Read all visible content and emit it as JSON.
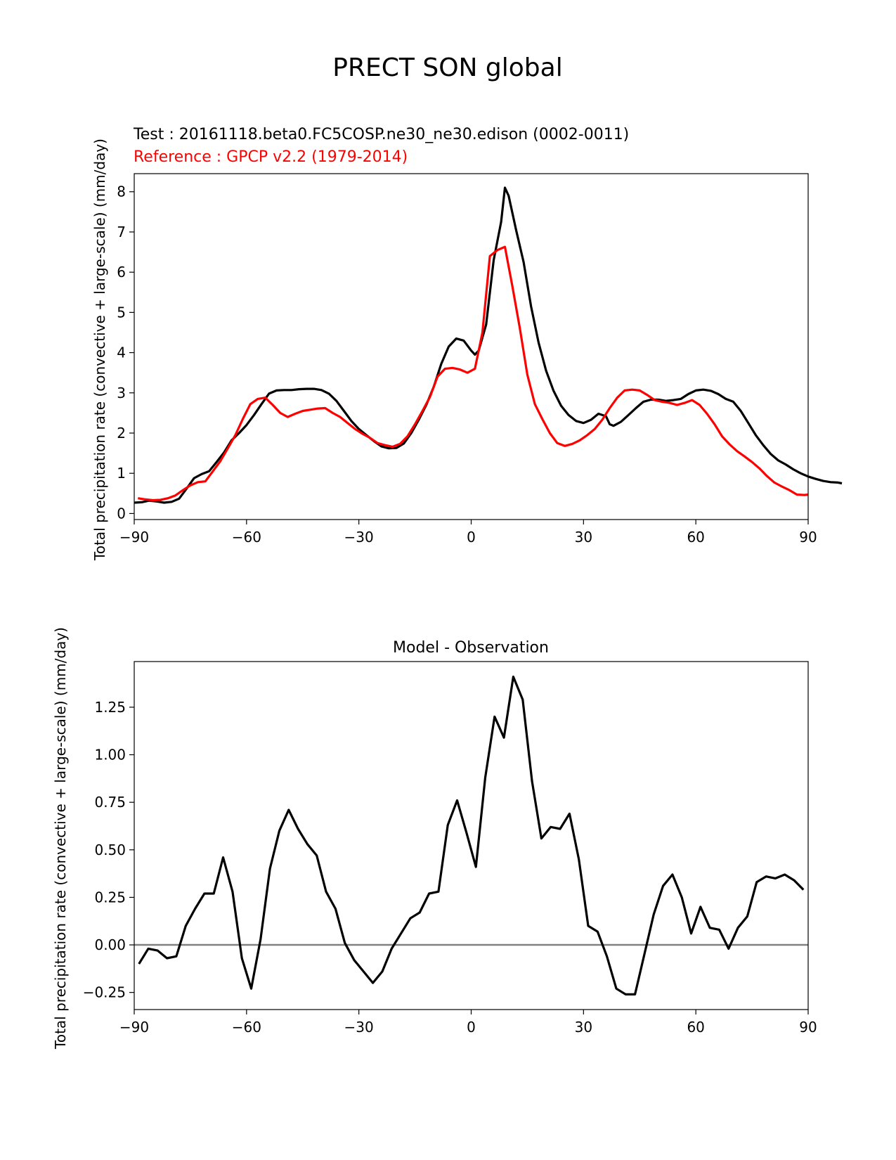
{
  "page_title": "PRECT SON global",
  "chart_data": [
    {
      "type": "line",
      "test_label": "Test : 20161118.beta0.FC5COSP.ne30_ne30.edison (0002-0011)",
      "reference_label": "Reference : GPCP v2.2 (1979-2014)",
      "xlabel": "",
      "ylabel": "Total precipitation rate (convective + large-scale) (mm/day)",
      "xlim": [
        -90,
        90
      ],
      "ylim": [
        -0.15,
        8.45
      ],
      "xticks": [
        -90,
        -60,
        -30,
        0,
        30,
        60,
        90
      ],
      "xtick_labels": [
        "−90",
        "−60",
        "−30",
        "0",
        "30",
        "60",
        "90"
      ],
      "yticks": [
        0,
        1,
        2,
        3,
        4,
        5,
        6,
        7,
        8
      ],
      "ytick_labels": [
        "0",
        "1",
        "2",
        "3",
        "4",
        "5",
        "6",
        "7",
        "8"
      ],
      "series": [
        {
          "color": "#000000",
          "points": [
            [
              -90,
              0.27
            ],
            [
              -88,
              0.28
            ],
            [
              -86,
              0.32
            ],
            [
              -84,
              0.3
            ],
            [
              -82,
              0.27
            ],
            [
              -80,
              0.29
            ],
            [
              -78,
              0.37
            ],
            [
              -76,
              0.62
            ],
            [
              -74,
              0.88
            ],
            [
              -72,
              0.98
            ],
            [
              -70,
              1.05
            ],
            [
              -68,
              1.28
            ],
            [
              -66,
              1.52
            ],
            [
              -64,
              1.82
            ],
            [
              -62,
              2.0
            ],
            [
              -60,
              2.2
            ],
            [
              -58,
              2.45
            ],
            [
              -56,
              2.72
            ],
            [
              -54,
              2.98
            ],
            [
              -52,
              3.06
            ],
            [
              -50,
              3.07
            ],
            [
              -48,
              3.07
            ],
            [
              -46,
              3.09
            ],
            [
              -44,
              3.1
            ],
            [
              -42,
              3.1
            ],
            [
              -40,
              3.07
            ],
            [
              -38,
              2.98
            ],
            [
              -36,
              2.8
            ],
            [
              -34,
              2.55
            ],
            [
              -32,
              2.3
            ],
            [
              -30,
              2.1
            ],
            [
              -28,
              1.95
            ],
            [
              -26,
              1.8
            ],
            [
              -24,
              1.67
            ],
            [
              -22,
              1.62
            ],
            [
              -20,
              1.63
            ],
            [
              -18,
              1.74
            ],
            [
              -16,
              2.0
            ],
            [
              -14,
              2.33
            ],
            [
              -12,
              2.7
            ],
            [
              -10,
              3.15
            ],
            [
              -8,
              3.72
            ],
            [
              -6,
              4.15
            ],
            [
              -4,
              4.35
            ],
            [
              -2,
              4.3
            ],
            [
              0,
              4.05
            ],
            [
              1,
              3.95
            ],
            [
              2,
              4.05
            ],
            [
              4,
              4.7
            ],
            [
              6,
              6.3
            ],
            [
              8,
              7.25
            ],
            [
              9,
              8.1
            ],
            [
              10,
              7.9
            ],
            [
              12,
              7.05
            ],
            [
              14,
              6.25
            ],
            [
              16,
              5.15
            ],
            [
              18,
              4.25
            ],
            [
              20,
              3.55
            ],
            [
              22,
              3.05
            ],
            [
              24,
              2.68
            ],
            [
              26,
              2.45
            ],
            [
              28,
              2.3
            ],
            [
              30,
              2.25
            ],
            [
              32,
              2.33
            ],
            [
              34,
              2.48
            ],
            [
              36,
              2.42
            ],
            [
              37,
              2.22
            ],
            [
              38,
              2.18
            ],
            [
              40,
              2.28
            ],
            [
              42,
              2.45
            ],
            [
              44,
              2.62
            ],
            [
              46,
              2.78
            ],
            [
              48,
              2.83
            ],
            [
              50,
              2.83
            ],
            [
              52,
              2.8
            ],
            [
              54,
              2.82
            ],
            [
              56,
              2.85
            ],
            [
              58,
              2.97
            ],
            [
              60,
              3.06
            ],
            [
              62,
              3.08
            ],
            [
              64,
              3.05
            ],
            [
              66,
              2.97
            ],
            [
              68,
              2.85
            ],
            [
              70,
              2.78
            ],
            [
              72,
              2.55
            ],
            [
              74,
              2.25
            ],
            [
              76,
              1.95
            ],
            [
              78,
              1.7
            ],
            [
              80,
              1.48
            ],
            [
              82,
              1.32
            ],
            [
              84,
              1.22
            ],
            [
              86,
              1.1
            ],
            [
              88,
              1.0
            ],
            [
              90,
              0.92
            ],
            [
              92,
              0.86
            ],
            [
              94,
              0.81
            ],
            [
              96,
              0.78
            ],
            [
              98,
              0.77
            ],
            [
              99,
              0.75
            ]
          ]
        },
        {
          "color": "#ff0000",
          "points": [
            [
              -89,
              0.38
            ],
            [
              -87,
              0.35
            ],
            [
              -85,
              0.33
            ],
            [
              -83,
              0.34
            ],
            [
              -81,
              0.38
            ],
            [
              -79,
              0.45
            ],
            [
              -77,
              0.58
            ],
            [
              -75,
              0.7
            ],
            [
              -73,
              0.78
            ],
            [
              -71,
              0.8
            ],
            [
              -69,
              1.05
            ],
            [
              -67,
              1.3
            ],
            [
              -65,
              1.62
            ],
            [
              -63,
              1.95
            ],
            [
              -61,
              2.35
            ],
            [
              -59,
              2.72
            ],
            [
              -57,
              2.85
            ],
            [
              -55,
              2.88
            ],
            [
              -53,
              2.7
            ],
            [
              -51,
              2.5
            ],
            [
              -49,
              2.4
            ],
            [
              -47,
              2.48
            ],
            [
              -45,
              2.55
            ],
            [
              -43,
              2.58
            ],
            [
              -41,
              2.61
            ],
            [
              -39,
              2.62
            ],
            [
              -37,
              2.5
            ],
            [
              -35,
              2.4
            ],
            [
              -33,
              2.25
            ],
            [
              -31,
              2.1
            ],
            [
              -29,
              1.98
            ],
            [
              -27,
              1.88
            ],
            [
              -25,
              1.75
            ],
            [
              -23,
              1.7
            ],
            [
              -21,
              1.66
            ],
            [
              -19,
              1.73
            ],
            [
              -17,
              1.92
            ],
            [
              -15,
              2.22
            ],
            [
              -13,
              2.55
            ],
            [
              -11,
              2.9
            ],
            [
              -9,
              3.4
            ],
            [
              -7,
              3.6
            ],
            [
              -5,
              3.62
            ],
            [
              -3,
              3.58
            ],
            [
              -1,
              3.5
            ],
            [
              1,
              3.6
            ],
            [
              3,
              4.5
            ],
            [
              5,
              6.4
            ],
            [
              7,
              6.55
            ],
            [
              9,
              6.63
            ],
            [
              11,
              5.65
            ],
            [
              13,
              4.6
            ],
            [
              15,
              3.45
            ],
            [
              17,
              2.72
            ],
            [
              19,
              2.35
            ],
            [
              21,
              2.0
            ],
            [
              23,
              1.75
            ],
            [
              25,
              1.68
            ],
            [
              27,
              1.73
            ],
            [
              29,
              1.82
            ],
            [
              31,
              1.95
            ],
            [
              33,
              2.1
            ],
            [
              35,
              2.33
            ],
            [
              37,
              2.62
            ],
            [
              39,
              2.88
            ],
            [
              41,
              3.06
            ],
            [
              43,
              3.08
            ],
            [
              45,
              3.06
            ],
            [
              47,
              2.95
            ],
            [
              49,
              2.82
            ],
            [
              51,
              2.78
            ],
            [
              53,
              2.75
            ],
            [
              55,
              2.7
            ],
            [
              57,
              2.75
            ],
            [
              59,
              2.82
            ],
            [
              61,
              2.7
            ],
            [
              63,
              2.48
            ],
            [
              65,
              2.22
            ],
            [
              67,
              1.92
            ],
            [
              69,
              1.72
            ],
            [
              71,
              1.55
            ],
            [
              73,
              1.42
            ],
            [
              75,
              1.28
            ],
            [
              77,
              1.12
            ],
            [
              79,
              0.93
            ],
            [
              81,
              0.77
            ],
            [
              83,
              0.67
            ],
            [
              85,
              0.58
            ],
            [
              87,
              0.47
            ],
            [
              89,
              0.46
            ],
            [
              90,
              0.47
            ]
          ]
        }
      ]
    },
    {
      "type": "line",
      "title": "Model - Observation",
      "xlabel": "",
      "ylabel": "Total precipitation rate (convective + large-scale) (mm/day)",
      "xlim": [
        -90,
        90
      ],
      "ylim": [
        -0.34,
        1.49
      ],
      "xticks": [
        -90,
        -60,
        -30,
        0,
        30,
        60,
        90
      ],
      "xtick_labels": [
        "−90",
        "−60",
        "−30",
        "0",
        "30",
        "60",
        "90"
      ],
      "yticks": [
        -0.25,
        0.0,
        0.25,
        0.5,
        0.75,
        1.0,
        1.25
      ],
      "ytick_labels": [
        "−0.25",
        "0.00",
        "0.25",
        "0.50",
        "0.75",
        "1.00",
        "1.25"
      ],
      "zero_line_color": "#808080",
      "series": [
        {
          "color": "#000000",
          "points": [
            [
              -88.75,
              -0.1
            ],
            [
              -86.25,
              -0.02
            ],
            [
              -83.75,
              -0.03
            ],
            [
              -81.25,
              -0.07
            ],
            [
              -78.75,
              -0.06
            ],
            [
              -76.25,
              0.1
            ],
            [
              -73.75,
              0.19
            ],
            [
              -71.25,
              0.27
            ],
            [
              -68.75,
              0.27
            ],
            [
              -66.25,
              0.46
            ],
            [
              -63.75,
              0.28
            ],
            [
              -61.25,
              -0.07
            ],
            [
              -58.75,
              -0.23
            ],
            [
              -56.25,
              0.03
            ],
            [
              -53.75,
              0.4
            ],
            [
              -51.25,
              0.6
            ],
            [
              -48.75,
              0.71
            ],
            [
              -46.25,
              0.61
            ],
            [
              -43.75,
              0.53
            ],
            [
              -41.25,
              0.47
            ],
            [
              -38.75,
              0.28
            ],
            [
              -36.25,
              0.19
            ],
            [
              -33.75,
              0.01
            ],
            [
              -31.25,
              -0.08
            ],
            [
              -28.75,
              -0.14
            ],
            [
              -26.25,
              -0.2
            ],
            [
              -23.75,
              -0.14
            ],
            [
              -21.25,
              -0.02
            ],
            [
              -18.75,
              0.06
            ],
            [
              -16.25,
              0.14
            ],
            [
              -13.75,
              0.17
            ],
            [
              -11.25,
              0.27
            ],
            [
              -8.75,
              0.28
            ],
            [
              -6.25,
              0.63
            ],
            [
              -3.75,
              0.76
            ],
            [
              -1.25,
              0.59
            ],
            [
              1.25,
              0.41
            ],
            [
              3.75,
              0.88
            ],
            [
              6.25,
              1.2
            ],
            [
              8.75,
              1.09
            ],
            [
              11.25,
              1.41
            ],
            [
              13.75,
              1.29
            ],
            [
              16.25,
              0.86
            ],
            [
              18.75,
              0.56
            ],
            [
              21.25,
              0.62
            ],
            [
              23.75,
              0.61
            ],
            [
              26.25,
              0.69
            ],
            [
              28.75,
              0.45
            ],
            [
              31.25,
              0.1
            ],
            [
              33.75,
              0.07
            ],
            [
              36.25,
              -0.06
            ],
            [
              38.75,
              -0.23
            ],
            [
              41.25,
              -0.26
            ],
            [
              43.75,
              -0.26
            ],
            [
              46.25,
              -0.05
            ],
            [
              48.75,
              0.16
            ],
            [
              51.25,
              0.31
            ],
            [
              53.75,
              0.37
            ],
            [
              56.25,
              0.25
            ],
            [
              58.75,
              0.06
            ],
            [
              61.25,
              0.2
            ],
            [
              63.75,
              0.09
            ],
            [
              66.25,
              0.08
            ],
            [
              68.75,
              -0.02
            ],
            [
              71.25,
              0.09
            ],
            [
              73.75,
              0.15
            ],
            [
              76.25,
              0.33
            ],
            [
              78.75,
              0.36
            ],
            [
              81.25,
              0.35
            ],
            [
              83.75,
              0.37
            ],
            [
              86.25,
              0.34
            ],
            [
              88.75,
              0.29
            ]
          ]
        }
      ]
    }
  ]
}
